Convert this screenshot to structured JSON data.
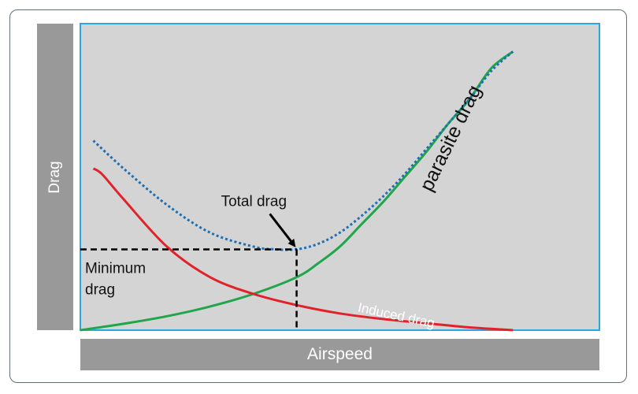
{
  "chart_data": {
    "type": "line",
    "xlabel": "Airspeed",
    "ylabel": "Drag",
    "series": [
      {
        "name": "parasite drag",
        "style": "solid",
        "color": "#1fa64a",
        "x": [
          0,
          0.1,
          0.2,
          0.3,
          0.4,
          0.5,
          0.55,
          0.6,
          0.65,
          0.7,
          0.75,
          0.8,
          0.85,
          0.9,
          0.95,
          1.0
        ],
        "y": [
          0.0,
          0.023,
          0.05,
          0.085,
          0.13,
          0.19,
          0.24,
          0.3,
          0.38,
          0.46,
          0.55,
          0.64,
          0.74,
          0.83,
          0.94,
          1.0
        ]
      },
      {
        "name": "Induced drag",
        "style": "solid",
        "color": "#e0232a",
        "x": [
          0.03,
          0.05,
          0.1,
          0.2,
          0.3,
          0.4,
          0.5,
          0.6,
          0.7,
          0.8,
          0.9,
          1.0
        ],
        "y": [
          0.58,
          0.56,
          0.47,
          0.3,
          0.19,
          0.13,
          0.09,
          0.06,
          0.04,
          0.025,
          0.01,
          0.0
        ]
      },
      {
        "name": "Total drag",
        "style": "dotted",
        "color": "#1f6fb5",
        "x": [
          0.03,
          0.1,
          0.2,
          0.3,
          0.4,
          0.45,
          0.5,
          0.55,
          0.6,
          0.65,
          0.7,
          0.75,
          0.8,
          0.85,
          0.9,
          0.95,
          1.0
        ],
        "y": [
          0.68,
          0.58,
          0.45,
          0.35,
          0.3,
          0.29,
          0.29,
          0.31,
          0.35,
          0.41,
          0.48,
          0.56,
          0.65,
          0.74,
          0.83,
          0.93,
          1.0
        ]
      }
    ],
    "minimum_point": {
      "x": 0.5,
      "y": 0.29
    },
    "xlim": [
      0,
      1.2
    ],
    "ylim": [
      0,
      1.1
    ],
    "grid": false,
    "annotations": {
      "total_drag": "Total drag",
      "minimum_drag_line1": "Minimum",
      "minimum_drag_line2": "drag",
      "parasite_drag": "parasite drag",
      "induced_drag": "Induced drag"
    },
    "colors": {
      "plot_background": "#d4d4d4",
      "plot_border": "#29a8e0",
      "label_bars": "#999999"
    }
  }
}
